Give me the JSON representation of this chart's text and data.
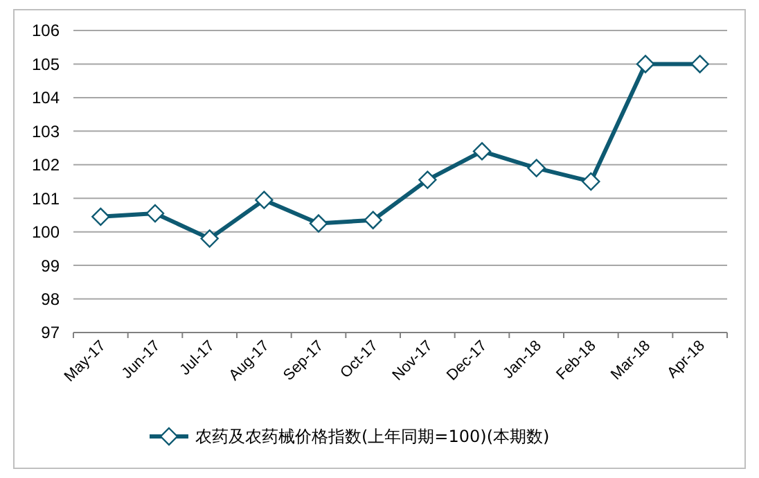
{
  "chart_data": {
    "type": "line",
    "categories": [
      "May-17",
      "Jun-17",
      "Jul-17",
      "Aug-17",
      "Sep-17",
      "Oct-17",
      "Nov-17",
      "Dec-17",
      "Jan-18",
      "Feb-18",
      "Mar-18",
      "Apr-18"
    ],
    "series": [
      {
        "name": "农药及农药械价格指数(上年同期=100)(本期数)",
        "color": "#0e5a72",
        "values": [
          100.45,
          100.55,
          99.8,
          100.95,
          100.25,
          100.35,
          101.55,
          102.4,
          101.9,
          101.5,
          105,
          105
        ]
      }
    ],
    "ylim": [
      97,
      106
    ],
    "yticks": [
      97,
      98,
      99,
      100,
      101,
      102,
      103,
      104,
      105,
      106
    ],
    "grid": "y",
    "legend": "bottom",
    "marker": "diamond",
    "line_style": "solid"
  }
}
